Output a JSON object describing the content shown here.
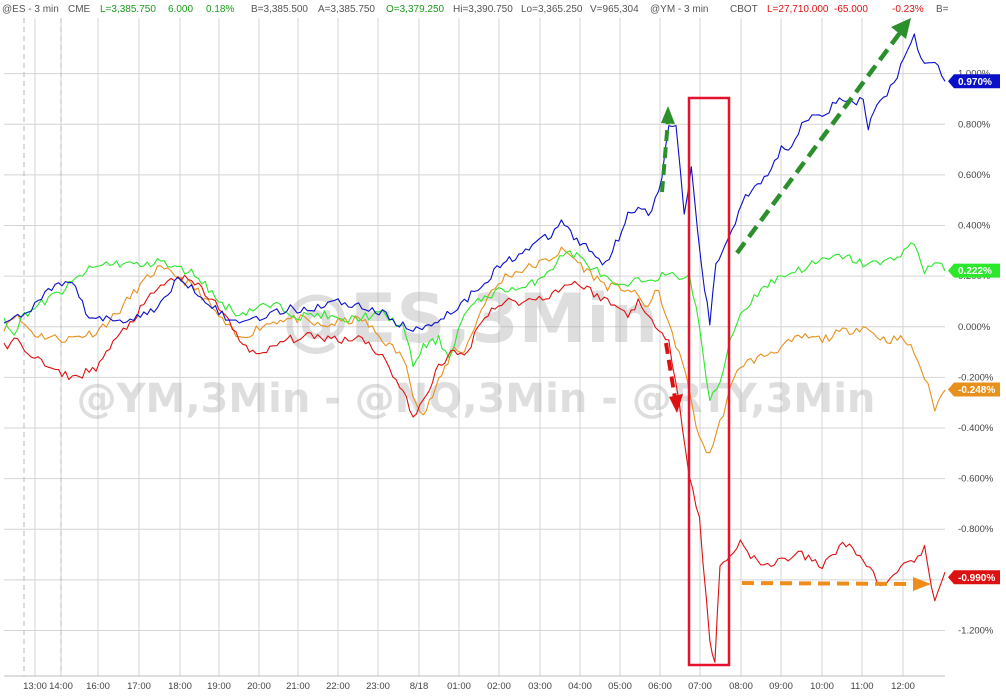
{
  "header": {
    "es_symbol": "@ES - 3 min",
    "es_exchange": "CME",
    "es_last": "L=3,385.750",
    "es_change": "6.000",
    "es_pct": "0.18%",
    "es_bid": "B=3,385.500",
    "es_ask": "A=3,385.750",
    "es_open": "O=3,379.250",
    "es_high": "Hi=3,390.750",
    "es_low": "Lo=3,365.250",
    "es_volume": "V=965,304",
    "ym_symbol": "@YM - 3 min",
    "ym_exchange": "CBOT",
    "ym_last": "L=27,710.000",
    "ym_change": "-65.000",
    "ym_pct": "-0.23%",
    "ym_bid": "B="
  },
  "watermark": {
    "line1": "@ES,3Min",
    "line2": "@YM,3Min - @NQ,3Min - @RTY,3Min"
  },
  "colors": {
    "es": "#0a10c8",
    "nq": "#2be82b",
    "ym": "#e8901c",
    "rty": "#dd1111",
    "grid": "#d4d4d4",
    "box": "#e8112d",
    "arrow_green": "#2b8f2b",
    "arrow_red": "#dd1111",
    "arrow_orange": "#ef8c1c"
  },
  "chart_data": {
    "type": "line",
    "x_tick_labels": [
      "13:00",
      "14:00",
      "16:00",
      "17:00",
      "18:00",
      "19:00",
      "20:00",
      "21:00",
      "22:00",
      "23:00",
      "8/18",
      "01:00",
      "02:00",
      "03:00",
      "04:00",
      "05:00",
      "06:00",
      "07:00",
      "08:00",
      "09:00",
      "10:00",
      "11:00",
      "12:00"
    ],
    "y_tick_labels": [
      "1.000%",
      "0.800%",
      "0.600%",
      "0.400%",
      "0.200%",
      "0.000%",
      "-0.200%",
      "-0.400%",
      "-0.600%",
      "-0.800%",
      "-1.000%",
      "-1.200%"
    ],
    "ylim": [
      -1.38,
      1.22
    ],
    "grid": true,
    "series": [
      {
        "key": "es",
        "last_label": "0.970%",
        "points": [
          [
            0,
            0.02
          ],
          [
            1,
            0.05
          ],
          [
            2,
            0.04
          ],
          [
            4,
            0.13
          ],
          [
            6,
            0.17
          ],
          [
            7,
            0.16
          ],
          [
            8,
            0.05
          ],
          [
            11,
            0.02
          ],
          [
            14,
            0.05
          ],
          [
            16,
            0.12
          ],
          [
            17,
            0.19
          ],
          [
            18,
            0.17
          ],
          [
            20,
            0.1
          ],
          [
            22,
            0.02
          ],
          [
            24,
            0.03
          ],
          [
            26,
            0.05
          ],
          [
            28,
            0.07
          ],
          [
            30,
            0.07
          ],
          [
            32,
            0.1
          ],
          [
            34,
            0.09
          ],
          [
            36,
            0.07
          ],
          [
            38,
            0.03
          ],
          [
            40,
            -0.02
          ],
          [
            41.5,
            0.01
          ],
          [
            43,
            0.04
          ],
          [
            45,
            0.1
          ],
          [
            47,
            0.18
          ],
          [
            48.5,
            0.24
          ],
          [
            50,
            0.28
          ],
          [
            52,
            0.33
          ],
          [
            53.5,
            0.36
          ],
          [
            54.5,
            0.42
          ],
          [
            56,
            0.34
          ],
          [
            57.5,
            0.3
          ],
          [
            58.5,
            0.25
          ],
          [
            59.5,
            0.3
          ],
          [
            61,
            0.44
          ],
          [
            62,
            0.48
          ],
          [
            63,
            0.45
          ],
          [
            64,
            0.52
          ],
          [
            65,
            0.78
          ],
          [
            65.7,
            0.8
          ],
          [
            66.5,
            0.45
          ],
          [
            67.2,
            0.62
          ],
          [
            67.8,
            0.38
          ],
          [
            68.5,
            0.15
          ],
          [
            69,
            0.01
          ],
          [
            69.6,
            0.25
          ],
          [
            70.5,
            0.32
          ],
          [
            71.5,
            0.42
          ],
          [
            72.5,
            0.52
          ],
          [
            74,
            0.58
          ],
          [
            75,
            0.62
          ],
          [
            76,
            0.7
          ],
          [
            77,
            0.72
          ],
          [
            78,
            0.8
          ],
          [
            79,
            0.85
          ],
          [
            80,
            0.84
          ],
          [
            81,
            0.87
          ],
          [
            82,
            0.9
          ],
          [
            83,
            0.88
          ],
          [
            84,
            0.9
          ],
          [
            84.5,
            0.78
          ],
          [
            85,
            0.85
          ],
          [
            86,
            0.9
          ],
          [
            87,
            0.97
          ],
          [
            88,
            1.05
          ],
          [
            89,
            1.14
          ],
          [
            90,
            1.03
          ],
          [
            91,
            1.05
          ],
          [
            92,
            0.97
          ]
        ]
      },
      {
        "key": "nq",
        "last_label": "0.222%",
        "points": [
          [
            0,
            0.03
          ],
          [
            1,
            -0.02
          ],
          [
            2,
            0.05
          ],
          [
            4,
            0.1
          ],
          [
            6,
            0.15
          ],
          [
            8,
            0.22
          ],
          [
            10,
            0.25
          ],
          [
            12,
            0.25
          ],
          [
            14,
            0.24
          ],
          [
            15,
            0.27
          ],
          [
            16,
            0.24
          ],
          [
            18,
            0.22
          ],
          [
            19,
            0.2
          ],
          [
            21,
            0.1
          ],
          [
            23,
            0.05
          ],
          [
            25,
            0.08
          ],
          [
            27,
            0.08
          ],
          [
            29,
            0.04
          ],
          [
            31,
            0.05
          ],
          [
            33,
            0.02
          ],
          [
            35,
            0.04
          ],
          [
            37,
            0.05
          ],
          [
            39,
            0.0
          ],
          [
            40,
            -0.15
          ],
          [
            41,
            -0.08
          ],
          [
            42.5,
            -0.05
          ],
          [
            43.5,
            -0.12
          ],
          [
            45,
            0.05
          ],
          [
            47,
            0.12
          ],
          [
            49,
            0.15
          ],
          [
            51,
            0.15
          ],
          [
            52.5,
            0.2
          ],
          [
            54,
            0.25
          ],
          [
            55,
            0.3
          ],
          [
            56,
            0.28
          ],
          [
            58,
            0.22
          ],
          [
            60,
            0.15
          ],
          [
            62,
            0.18
          ],
          [
            64,
            0.2
          ],
          [
            66,
            0.2
          ],
          [
            67,
            0.2
          ],
          [
            68,
            0.0
          ],
          [
            69,
            -0.3
          ],
          [
            70,
            -0.22
          ],
          [
            71,
            -0.05
          ],
          [
            72,
            0.05
          ],
          [
            74,
            0.15
          ],
          [
            76,
            0.2
          ],
          [
            78,
            0.23
          ],
          [
            80,
            0.26
          ],
          [
            82,
            0.28
          ],
          [
            84,
            0.25
          ],
          [
            86,
            0.25
          ],
          [
            88,
            0.3
          ],
          [
            89,
            0.33
          ],
          [
            90,
            0.22
          ],
          [
            91,
            0.26
          ],
          [
            92,
            0.22
          ]
        ]
      },
      {
        "key": "ym",
        "last_label": "-0.248%",
        "points": [
          [
            0,
            0.0
          ],
          [
            1,
            0.05
          ],
          [
            3,
            -0.03
          ],
          [
            6,
            -0.05
          ],
          [
            9,
            -0.02
          ],
          [
            11,
            0.05
          ],
          [
            13,
            0.15
          ],
          [
            15,
            0.23
          ],
          [
            17,
            0.2
          ],
          [
            19,
            0.14
          ],
          [
            21,
            0.04
          ],
          [
            23,
            -0.05
          ],
          [
            25,
            0.0
          ],
          [
            27,
            0.03
          ],
          [
            29,
            0.03
          ],
          [
            31,
            0.0
          ],
          [
            33,
            0.02
          ],
          [
            35,
            0.03
          ],
          [
            37,
            -0.05
          ],
          [
            39,
            -0.12
          ],
          [
            40,
            -0.26
          ],
          [
            41,
            -0.35
          ],
          [
            42.5,
            -0.22
          ],
          [
            44,
            -0.08
          ],
          [
            45,
            -0.1
          ],
          [
            47,
            0.1
          ],
          [
            49,
            0.2
          ],
          [
            51,
            0.23
          ],
          [
            53,
            0.26
          ],
          [
            54.5,
            0.3
          ],
          [
            55.5,
            0.28
          ],
          [
            57,
            0.22
          ],
          [
            59,
            0.16
          ],
          [
            61,
            0.15
          ],
          [
            63,
            0.08
          ],
          [
            64,
            0.15
          ],
          [
            65,
            0.0
          ],
          [
            66,
            -0.1
          ],
          [
            67,
            -0.25
          ],
          [
            68,
            -0.45
          ],
          [
            69,
            -0.5
          ],
          [
            70,
            -0.38
          ],
          [
            71,
            -0.25
          ],
          [
            72,
            -0.15
          ],
          [
            74,
            -0.12
          ],
          [
            76,
            -0.08
          ],
          [
            78,
            -0.04
          ],
          [
            80,
            -0.05
          ],
          [
            82,
            -0.02
          ],
          [
            84,
            0.0
          ],
          [
            86,
            -0.05
          ],
          [
            88,
            -0.05
          ],
          [
            89,
            -0.1
          ],
          [
            90,
            -0.2
          ],
          [
            91,
            -0.32
          ],
          [
            92,
            -0.25
          ]
        ]
      },
      {
        "key": "rty",
        "last_label": "-0.990%",
        "points": [
          [
            0,
            -0.08
          ],
          [
            1,
            -0.05
          ],
          [
            3,
            -0.12
          ],
          [
            5,
            -0.18
          ],
          [
            7,
            -0.2
          ],
          [
            9,
            -0.16
          ],
          [
            11,
            -0.05
          ],
          [
            13,
            0.05
          ],
          [
            15,
            0.15
          ],
          [
            17,
            0.2
          ],
          [
            19,
            0.16
          ],
          [
            21,
            0.08
          ],
          [
            23,
            -0.05
          ],
          [
            25,
            -0.12
          ],
          [
            27,
            -0.06
          ],
          [
            29,
            -0.04
          ],
          [
            31,
            -0.04
          ],
          [
            33,
            -0.05
          ],
          [
            35,
            -0.04
          ],
          [
            37,
            -0.12
          ],
          [
            39,
            -0.25
          ],
          [
            40,
            -0.36
          ],
          [
            41,
            -0.3
          ],
          [
            42.5,
            -0.15
          ],
          [
            44,
            -0.1
          ],
          [
            45,
            -0.12
          ],
          [
            47,
            0.05
          ],
          [
            49,
            0.1
          ],
          [
            51,
            0.1
          ],
          [
            53,
            0.12
          ],
          [
            54.5,
            0.15
          ],
          [
            55.5,
            0.18
          ],
          [
            57,
            0.15
          ],
          [
            59,
            0.1
          ],
          [
            61,
            0.05
          ],
          [
            62,
            0.1
          ],
          [
            63,
            0.03
          ],
          [
            64,
            0.0
          ],
          [
            65,
            -0.05
          ],
          [
            66,
            -0.3
          ],
          [
            67,
            -0.6
          ],
          [
            68,
            -0.75
          ],
          [
            69,
            -1.25
          ],
          [
            69.5,
            -1.32
          ],
          [
            70,
            -0.95
          ],
          [
            71,
            -0.9
          ],
          [
            72,
            -0.85
          ],
          [
            73,
            -0.9
          ],
          [
            74,
            -0.95
          ],
          [
            76,
            -0.92
          ],
          [
            78,
            -0.9
          ],
          [
            80,
            -0.95
          ],
          [
            82,
            -0.85
          ],
          [
            84,
            -0.92
          ],
          [
            86,
            -1.03
          ],
          [
            88,
            -0.95
          ],
          [
            90,
            -0.88
          ],
          [
            91,
            -1.1
          ],
          [
            92,
            -0.97
          ]
        ]
      }
    ]
  }
}
